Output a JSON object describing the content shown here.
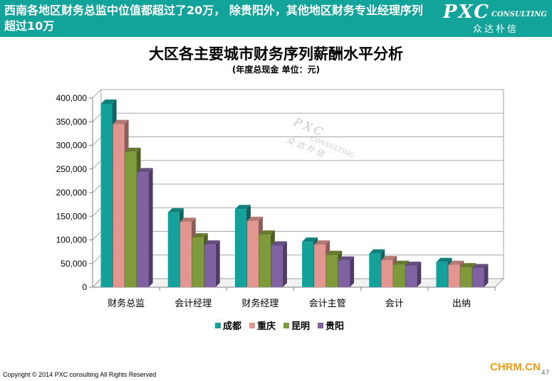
{
  "header": {
    "headline": "西南各地区财务总监中位值都超过了20万， 除贵阳外，其他地区财务专业经理序列超过10万",
    "logo_main": "PXC",
    "logo_sub": "CONSULTING",
    "logo_cn": "众达朴信"
  },
  "watermark": {
    "main": "PXC",
    "sub": "CONSULTING",
    "cn": "众达朴信"
  },
  "footer": {
    "copyright": "Copyright © 2014 PXC consulting All Rights Reserved",
    "source": "CHRM.CN",
    "page_number": "47"
  },
  "colors": {
    "banner": "#12a39a",
    "series": [
      "#13a19a",
      "#e2968f",
      "#7f9a3a",
      "#8062a3"
    ]
  },
  "chart_data": {
    "type": "bar",
    "title": "大区各主要城市财务序列薪酬水平分析",
    "subtitle": "(年度总现金 单位：元)",
    "categories": [
      "财务总监",
      "会计经理",
      "财务经理",
      "会计主管",
      "会计",
      "出纳"
    ],
    "series": [
      {
        "name": "成都",
        "values": [
          388000,
          158000,
          165000,
          96000,
          71000,
          53000
        ]
      },
      {
        "name": "重庆",
        "values": [
          345000,
          138000,
          140000,
          90000,
          57000,
          47000
        ]
      },
      {
        "name": "昆明",
        "values": [
          286000,
          105000,
          111000,
          68000,
          47000,
          42000
        ]
      },
      {
        "name": "贵阳",
        "values": [
          243000,
          90000,
          88000,
          56000,
          45000,
          40000
        ]
      }
    ],
    "ylim": [
      0,
      400000
    ],
    "yticks": [
      "0",
      "50,000",
      "100,000",
      "150,000",
      "200,000",
      "250,000",
      "300,000",
      "350,000",
      "400,000"
    ],
    "grid": true,
    "legend_position": "bottom"
  }
}
